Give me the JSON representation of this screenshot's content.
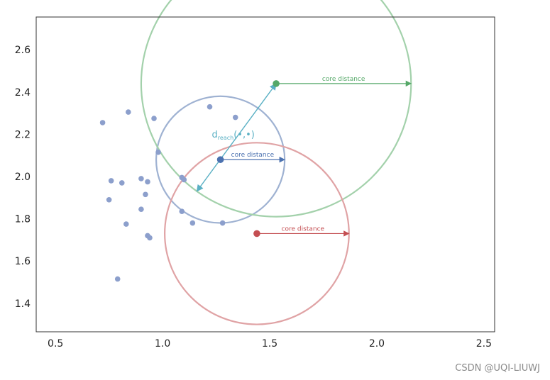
{
  "chart_data": {
    "type": "scatter",
    "title": "",
    "xlabel": "",
    "ylabel": "",
    "xlim": [
      0.41,
      2.55
    ],
    "ylim": [
      1.265,
      2.755
    ],
    "xticks": [
      0.5,
      1.0,
      1.5,
      2.0,
      2.5
    ],
    "yticks": [
      1.4,
      1.6,
      1.8,
      2.0,
      2.2,
      2.4,
      2.6
    ],
    "xtick_labels": [
      "0.5",
      "1.0",
      "1.5",
      "2.0",
      "2.5"
    ],
    "ytick_labels": [
      "1.4",
      "1.6",
      "1.8",
      "2.0",
      "2.2",
      "2.4",
      "2.6"
    ],
    "grid": false,
    "points": {
      "color": "#8c9fcc",
      "x": [
        0.72,
        0.84,
        0.96,
        0.98,
        1.22,
        1.34,
        0.76,
        0.81,
        0.9,
        0.93,
        1.09,
        1.1,
        0.75,
        0.92,
        0.9,
        1.09,
        0.83,
        1.14,
        1.28,
        0.93,
        0.94,
        0.79
      ],
      "y": [
        2.255,
        2.305,
        2.275,
        2.115,
        2.33,
        2.28,
        1.98,
        1.97,
        1.99,
        1.975,
        1.995,
        1.985,
        1.89,
        1.915,
        1.845,
        1.835,
        1.775,
        1.78,
        1.78,
        1.72,
        1.71,
        1.515
      ]
    },
    "highlighted_points": [
      {
        "id": "p",
        "x": 1.27,
        "y": 2.08,
        "color": "#4c72b0"
      },
      {
        "id": "q",
        "x": 1.53,
        "y": 2.44,
        "color": "#55a868"
      },
      {
        "id": "r",
        "x": 1.44,
        "y": 1.73,
        "color": "#c44e52"
      }
    ],
    "circles": [
      {
        "center": "p",
        "radius": 0.3,
        "color": "#9fb2d2"
      },
      {
        "center": "q",
        "radius": 0.63,
        "color": "#a3d1ab"
      },
      {
        "center": "r",
        "radius": 0.43,
        "color": "#e0a3a5"
      }
    ],
    "core_distance_arrows": [
      {
        "from": "p",
        "to_x": 1.57,
        "label": "core distance",
        "color": "#4c72b0"
      },
      {
        "from": "q",
        "to_x": 2.16,
        "label": "core distance",
        "color": "#55a868"
      },
      {
        "from": "r",
        "to_x": 1.87,
        "label": "core distance",
        "color": "#c44e52"
      }
    ],
    "reach_arrow": {
      "color": "#5ab0c4",
      "from": [
        1.16,
        1.93
      ],
      "to": [
        1.53,
        2.44
      ],
      "label_main": "d",
      "label_sub": "reach",
      "label_args": "(•,•)",
      "label_x": 1.23,
      "label_y": 2.185
    }
  },
  "watermark": "CSDN @UQI-LIUWJ"
}
